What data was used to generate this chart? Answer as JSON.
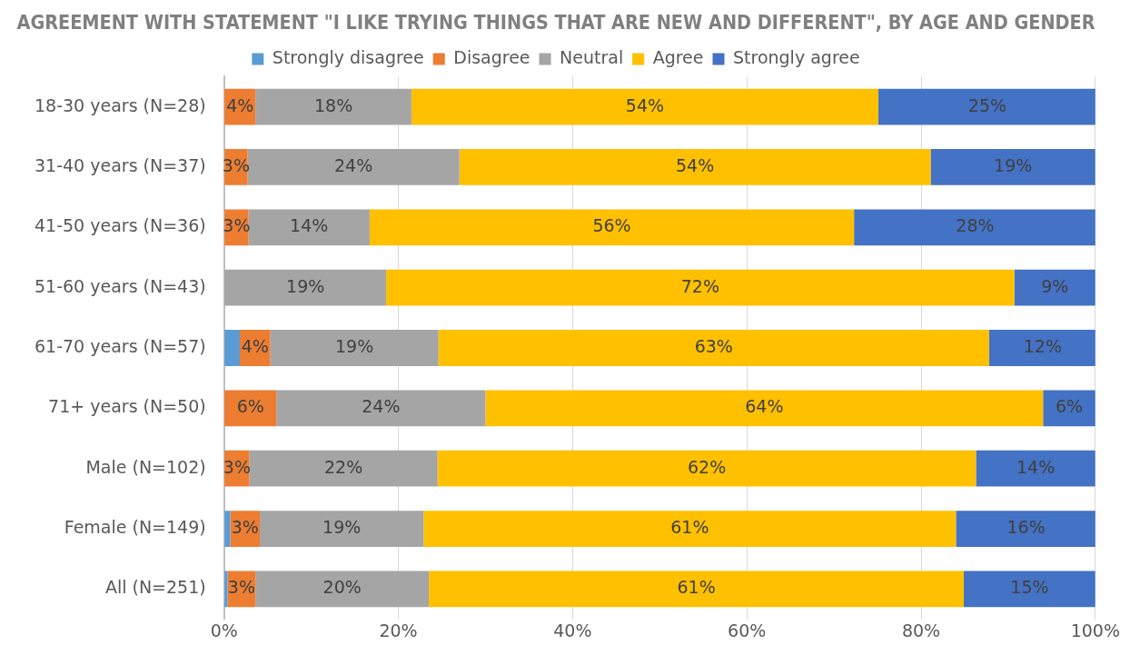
{
  "chart_data": {
    "type": "bar",
    "orientation": "horizontal",
    "stacked": true,
    "title": "AGREEMENT WITH STATEMENT \"I LIKE TRYING THINGS THAT ARE NEW AND DIFFERENT\", BY AGE AND GENDER",
    "categories": [
      "18-30 years (N=28)",
      "31-40 years (N=37)",
      "41-50 years (N=36)",
      "51-60 years (N=43)",
      "61-70 years (N=57)",
      "71+ years (N=50)",
      "Male (N=102)",
      "Female (N=149)",
      "All (N=251)"
    ],
    "series": [
      {
        "name": "Strongly disagree",
        "color": "#5b9bd5",
        "values": [
          0,
          0,
          0,
          0,
          1.8,
          0,
          0,
          0.7,
          0.4
        ],
        "value_labels": [
          null,
          null,
          null,
          null,
          null,
          null,
          null,
          null,
          null
        ]
      },
      {
        "name": "Disagree",
        "color": "#ed7d31",
        "values": [
          3.6,
          2.7,
          2.8,
          0,
          3.5,
          6,
          2.9,
          3.4,
          3.2
        ],
        "value_labels": [
          "4%",
          "3%",
          "3%",
          null,
          "4%",
          "6%",
          "3%",
          "3%",
          "3%"
        ]
      },
      {
        "name": "Neutral",
        "color": "#a5a5a5",
        "values": [
          17.9,
          24.3,
          13.9,
          18.6,
          19.3,
          24,
          21.6,
          18.8,
          19.9
        ],
        "value_labels": [
          "18%",
          "24%",
          "14%",
          "19%",
          "19%",
          "24%",
          "22%",
          "19%",
          "20%"
        ]
      },
      {
        "name": "Agree",
        "color": "#ffc000",
        "values": [
          53.6,
          54.1,
          55.6,
          72.1,
          63.2,
          64,
          61.8,
          61.1,
          61.4
        ],
        "value_labels": [
          "54%",
          "54%",
          "56%",
          "72%",
          "63%",
          "64%",
          "62%",
          "61%",
          "61%"
        ]
      },
      {
        "name": "Strongly agree",
        "color": "#4472c4",
        "values": [
          25,
          18.9,
          27.8,
          9.3,
          12.3,
          6,
          13.7,
          16.1,
          15.1
        ],
        "value_labels": [
          "25%",
          "19%",
          "28%",
          "9%",
          "12%",
          "6%",
          "14%",
          "16%",
          "15%"
        ]
      }
    ],
    "xlim": [
      0,
      100
    ],
    "xticks": [
      {
        "value": 0,
        "label": "0%"
      },
      {
        "value": 20,
        "label": "20%"
      },
      {
        "value": 40,
        "label": "40%"
      },
      {
        "value": 60,
        "label": "60%"
      },
      {
        "value": 80,
        "label": "80%"
      },
      {
        "value": 100,
        "label": "100%"
      }
    ],
    "grid": "x",
    "legend": "top"
  }
}
